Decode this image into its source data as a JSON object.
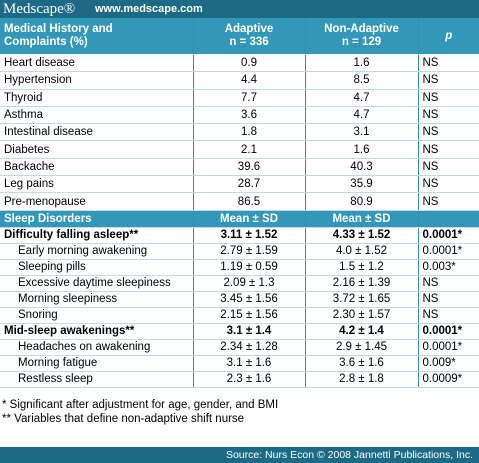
{
  "header": {
    "logo": "Medscape®",
    "url": "www.medscape.com"
  },
  "table": {
    "columns": [
      [
        "Medical History and",
        "Complaints (%)"
      ],
      [
        "Adaptive",
        "n = 336"
      ],
      [
        "Non-Adaptive",
        "n = 129"
      ],
      [
        "p"
      ]
    ],
    "rows": [
      [
        "Heart disease",
        "0.9",
        "1.6",
        "NS"
      ],
      [
        "Hypertension",
        "4.4",
        "8.5",
        "NS"
      ],
      [
        "Thyroid",
        "7.7",
        "4.7",
        "NS"
      ],
      [
        "Asthma",
        "3.6",
        "4.7",
        "NS"
      ],
      [
        "Intestinal disease",
        "1.8",
        "3.1",
        "NS"
      ],
      [
        "Diabetes",
        "2.1",
        "1.6",
        "NS"
      ],
      [
        "Backache",
        "39.6",
        "40.3",
        "NS"
      ],
      [
        "Leg pains",
        "28.7",
        "35.9",
        "NS"
      ],
      [
        "Pre-menopause",
        "86.5",
        "80.9",
        "NS"
      ]
    ],
    "sleep_header": [
      "Sleep Disorders",
      "Mean ± SD",
      "Mean ± SD"
    ],
    "sleep_rows": [
      [
        "Difficulty falling asleep**",
        "3.11 ± 1.52",
        "4.33 ± 1.52",
        "0.0001*"
      ],
      [
        "Early morning awakening",
        "2.79 ± 1.59",
        "4.0 ± 1.52",
        "0.0001*"
      ],
      [
        "Sleeping pills",
        "1.19 ± 0.59",
        "1.5 ± 1.2",
        "0.003*"
      ],
      [
        "Excessive daytime sleepiness",
        "2.09 ± 1.3",
        "2.16 ± 1.39",
        "NS"
      ],
      [
        "Morning sleepiness",
        "3.45 ± 1.56",
        "3.72 ± 1.65",
        "NS"
      ],
      [
        "Snoring",
        "2.15 ± 1.56",
        "2.30 ± 1.57",
        "NS"
      ],
      [
        "Mid-sleep awakenings**",
        "3.1 ± 1.4",
        "4.2 ± 1.4",
        "0.0001*"
      ],
      [
        "Headaches on awakening",
        "2.34 ± 1.28",
        "2.9 ± 1.45",
        "0.0001*"
      ],
      [
        "Morning fatigue",
        "3.1 ± 1.6",
        "3.6 ± 1.6",
        "0.009*"
      ],
      [
        "Restless sleep",
        "2.3 ± 1.6",
        "2.8 ± 1.8",
        "0.0009*"
      ]
    ]
  },
  "footnotes": [
    "* Significant after adjustment for age, gender, and BMI",
    "** Variables that define non-adaptive shift nurse"
  ],
  "source": "Source: Nurs Econ © 2008 Jannetti Publications, Inc."
}
